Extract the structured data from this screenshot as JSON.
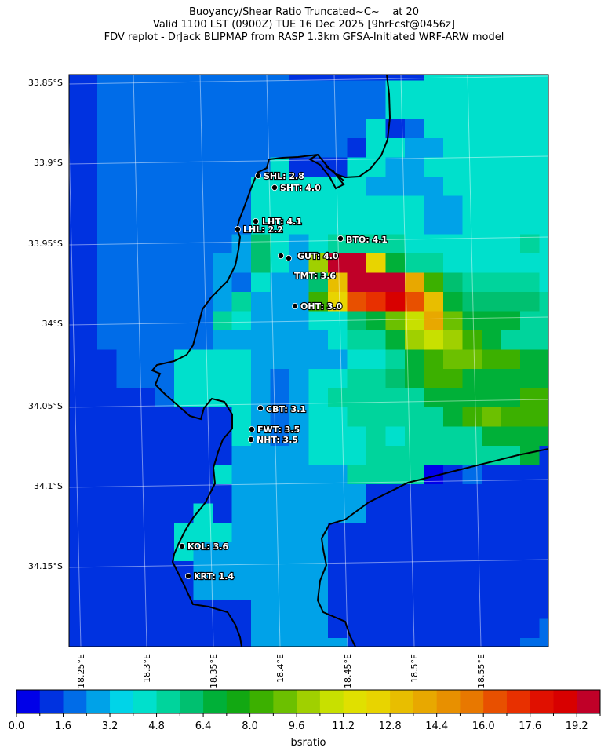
{
  "header": {
    "title_line1": "Buoyancy/Shear Ratio Truncated~C~    at 20",
    "title_line2": "Valid 1100 LST (0900Z) TUE 16 Dec 2025 [9hrFcst@0456z]",
    "title_line3": "FDV replot - DrJack BLIPMAP from RASP 1.3km GFSA-Initiated WRF-ARW model"
  },
  "map": {
    "lat_labels": [
      "33.85°S",
      "33.9°S",
      "33.95°S",
      "34°S",
      "34.05°S",
      "34.1°S",
      "34.15°S"
    ],
    "lon_labels": [
      "18.25°E",
      "18.3°E",
      "18.35°E",
      "18.4°E",
      "18.45°E",
      "18.5°E",
      "18.55°E"
    ],
    "stations": [
      {
        "label": "SHL: 2.8"
      },
      {
        "label": "SHT: 4.0"
      },
      {
        "label": "LHT: 4.1"
      },
      {
        "label": "LHL: 2.2"
      },
      {
        "label": "BTO: 4.1"
      },
      {
        "label": "GUT: 4.0"
      },
      {
        "label": "TMT: 3.6"
      },
      {
        "label": "OHT: 3.0"
      },
      {
        "label": "CBT: 3.1"
      },
      {
        "label": "FWT: 3.5"
      },
      {
        "label": "NHT: 3.5"
      },
      {
        "label": "KOL: 3.6"
      },
      {
        "label": "KRT: 1.4"
      }
    ]
  },
  "colorbar": {
    "label": "bsratio",
    "ticks": [
      "0.0",
      "1.6",
      "3.2",
      "4.8",
      "6.4",
      "8.0",
      "9.6",
      "11.2",
      "12.8",
      "14.4",
      "16.0",
      "17.6",
      "19.2"
    ],
    "range": [
      0,
      20
    ],
    "step": 0.8,
    "colors": [
      "#0000e8",
      "#0032e0",
      "#006ce8",
      "#00a2e8",
      "#00d4e8",
      "#00e0cc",
      "#00d49c",
      "#00c070",
      "#00b038",
      "#12a812",
      "#3cb000",
      "#6cc000",
      "#a0d000",
      "#c8e000",
      "#e0e000",
      "#e8d400",
      "#e8be00",
      "#e8a800",
      "#e89000",
      "#e87800",
      "#e85000",
      "#e83000",
      "#e01000",
      "#d80000",
      "#c00028"
    ]
  },
  "chart_data": {
    "type": "heatmap",
    "value_label": "bsratio",
    "bin_width": 0.8,
    "bin_index_key": "0123456789abcdefghijklmno",
    "bins": [
      "11222222222211111115555555",
      "11222222222222222555555555",
      "11222222222222222555555555",
      "11222222222222225125555555",
      "11222222222222215533555555",
      "11222222222511155335555555",
      "11222222225555553333555555",
      "11222222225555555553355555",
      "11222222225555555553355555",
      "11222222237535666655555565",
      "1122222233753coof866555555",
      "11222222325337goooha766665",
      "1122222236333afklnkg877776",
      "11222222653335578bdhb88866",
      "112222223333335668cdca8666",
      "1112225555333335568abbaa888",
      "11122255553235566 78aa88888",
      "11111255553235666668888 8aa",
      "11111111153235566666 8aba aa",
      "11111111153235556566668888",
      "11111111133335556666666681",
      "11111111533333366660121111",
      "11111111133333331111111111",
      "11111115133333331111111111",
      "11111155533333111111111111",
      "11111153333333111111111111",
      "11111113333333111111111111",
      "11111113333333111111111111",
      "11111111113333111111111111",
      "11111111113333111111111112",
      "11111111113333311111111122"
    ]
  }
}
